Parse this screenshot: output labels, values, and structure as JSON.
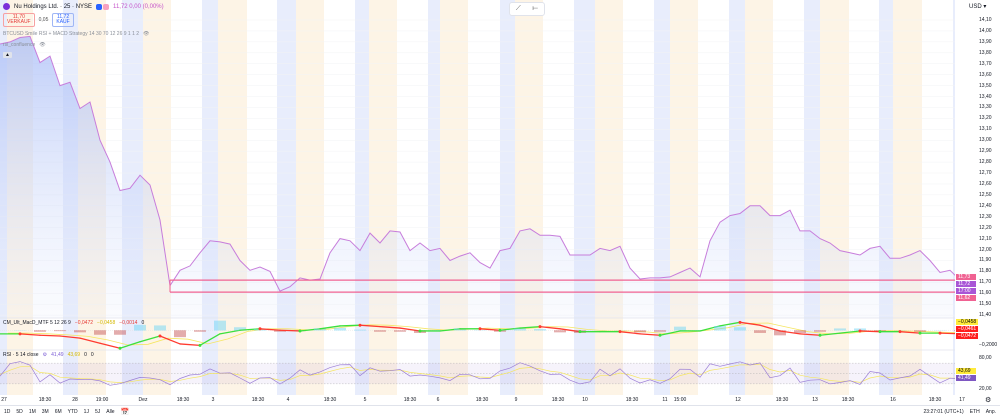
{
  "header": {
    "symbol": "Nu Holdings Ltd. · 25 · NYSE",
    "price_info": "11,72  0,00 (0,00%)",
    "sell_price": "11,70",
    "sell_label": "VERKAUF",
    "spread": "0,05",
    "buy_price": "11,72",
    "buy_label": "KAUF",
    "indicator": "BTCUSD Smile RSI + MACD Strategy 14 30 70 12 26 9 1 1 2",
    "overlay_label": "rsi_confluence"
  },
  "float_toolbar": {
    "icons": [
      "line-tool-icon",
      "minus-icon"
    ]
  },
  "price_axis": {
    "currency": "USD",
    "ticks": [
      "14,10",
      "14,00",
      "13,90",
      "13,80",
      "13,70",
      "13,60",
      "13,50",
      "13,40",
      "13,30",
      "13,20",
      "13,10",
      "13,00",
      "12,90",
      "12,80",
      "12,70",
      "12,60",
      "12,50",
      "12,40",
      "12,30",
      "12,20",
      "12,10",
      "12,00",
      "11,90",
      "11,80",
      "11,70",
      "11,60",
      "11,50",
      "11,40"
    ],
    "labels": {
      "upper": "11,73",
      "current": "11,72",
      "current_time": "17:00",
      "lower": "11,62"
    }
  },
  "macd": {
    "legend": "CM_Ult_MacD_MTF 5 12 26 9",
    "v1": "−0,0472",
    "v2": "−0,0458",
    "v3": "−0,0014",
    "v4": "0",
    "axis": [
      "−0,0458",
      "−0,0461",
      "−0,0472",
      "−0,2000"
    ]
  },
  "rsi": {
    "legend": "RSI · 5 14 close",
    "v1": "41,49",
    "v2": "43,69",
    "v3": "0",
    "v4": "0",
    "axis": [
      "80,00",
      "43,69",
      "41,49",
      "20,00"
    ]
  },
  "time_axis": [
    "27",
    "18:30",
    "28",
    "19:00",
    "Dez",
    "18:30",
    "3",
    "18:30",
    "4",
    "18:30",
    "5",
    "18:30",
    "6",
    "18:30",
    "9",
    "18:30",
    "10",
    "18:30",
    "11",
    "15:00",
    "12",
    "18:30",
    "13",
    "18:30",
    "16",
    "18:30",
    "17"
  ],
  "bottom_bar": {
    "ranges": [
      "1D",
      "5D",
      "1M",
      "3M",
      "6M",
      "YTD",
      "1J",
      "5J",
      "Alle"
    ],
    "clock": "23:27:01 (UTC+1)",
    "session": "ETH",
    "adjust": "Anp."
  },
  "colors": {
    "line": "#c77ddb",
    "hline": "#f06292",
    "up": "#3ce03c",
    "down": "#ff3b30",
    "signal": "#f5e663",
    "rsi": "#9c7fd6"
  },
  "chart_data": {
    "type": "line",
    "ylim": [
      11.4,
      14.1
    ],
    "hlines": [
      11.72,
      11.61
    ],
    "price": [
      13.88,
      13.9,
      13.94,
      13.95,
      13.71,
      13.77,
      13.5,
      13.53,
      13.29,
      13.35,
      13.0,
      12.8,
      12.54,
      12.56,
      12.68,
      12.59,
      12.27,
      11.67,
      11.81,
      11.85,
      11.97,
      12.08,
      12.07,
      12.05,
      11.9,
      11.81,
      11.84,
      11.8,
      11.62,
      11.66,
      11.74,
      11.72,
      11.73,
      11.97,
      12.1,
      12.08,
      11.99,
      12.15,
      12.06,
      12.17,
      12.16,
      11.99,
      12.06,
      11.99,
      12.01,
      11.9,
      11.94,
      11.97,
      11.88,
      11.83,
      11.99,
      12.01,
      12.17,
      12.19,
      12.13,
      12.13,
      12.12,
      11.95,
      11.95,
      11.95,
      12.01,
      11.99,
      12.03,
      11.83,
      11.73,
      11.74,
      11.74,
      11.75,
      11.79,
      11.83,
      11.75,
      12.08,
      12.25,
      12.31,
      12.33,
      12.4,
      12.4,
      12.31,
      12.31,
      12.36,
      12.17,
      12.17,
      12.1,
      12.06,
      11.99,
      11.97,
      11.95,
      12.01,
      12.03,
      11.92,
      11.92,
      11.95,
      11.99,
      11.9,
      11.79,
      11.81,
      11.72
    ],
    "macd": [
      -0.07,
      -0.07,
      -0.09,
      -0.1,
      -0.13,
      -0.2,
      -0.27,
      -0.18,
      -0.1,
      -0.21,
      -0.23,
      -0.07,
      -0.02,
      0.0,
      -0.02,
      -0.03,
      0.0,
      0.04,
      0.05,
      0.03,
      0.01,
      -0.03,
      -0.03,
      0.0,
      0.0,
      -0.02,
      0.01,
      0.03,
      0.0,
      -0.04,
      -0.04,
      -0.04,
      -0.07,
      -0.09,
      -0.03,
      -0.03,
      0.04,
      0.09,
      0.05,
      -0.03,
      -0.07,
      -0.09,
      -0.06,
      -0.03,
      -0.04,
      -0.04,
      -0.06,
      -0.06,
      -0.07
    ],
    "rsi_levels": [
      70,
      30
    ]
  }
}
